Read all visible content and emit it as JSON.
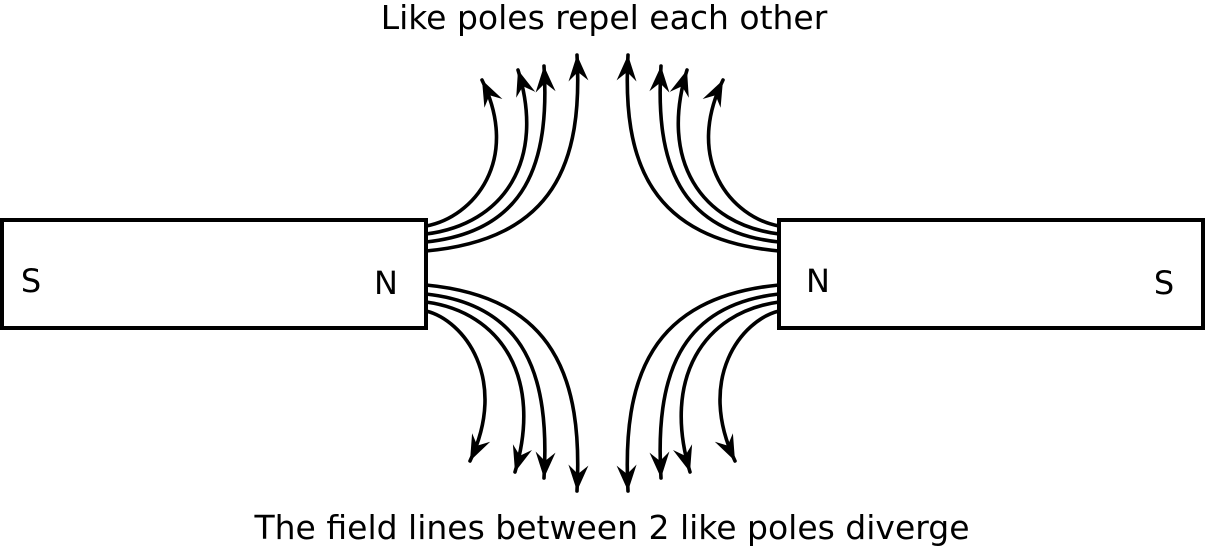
{
  "title": "Like poles repel each other",
  "caption": "The field lines between 2 like poles diverge",
  "magnets": [
    {
      "id": "left",
      "left_pole": "S",
      "right_pole": "N"
    },
    {
      "id": "right",
      "left_pole": "N",
      "right_pole": "S"
    }
  ],
  "colors": {
    "stroke": "#000000",
    "background": "#ffffff"
  }
}
